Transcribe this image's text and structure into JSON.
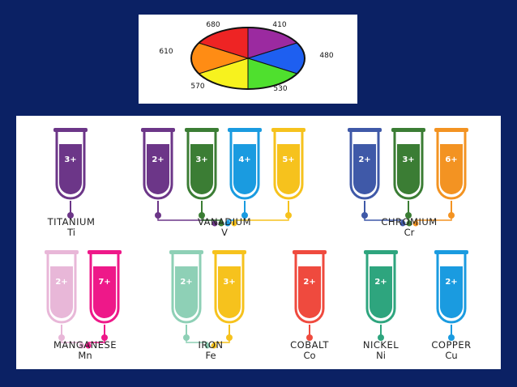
{
  "wheel": {
    "segments": [
      {
        "label": "410",
        "color": "#9b2aa0"
      },
      {
        "label": "480",
        "color": "#1e5ff0"
      },
      {
        "label": "530",
        "color": "#4fe02e"
      },
      {
        "label": "570",
        "color": "#f7f21e"
      },
      {
        "label": "610",
        "color": "#ff8c14"
      },
      {
        "label": "680",
        "color": "#ee2424"
      }
    ]
  },
  "elements": [
    {
      "name": "TITANIUM",
      "symbol": "Ti",
      "tubes": [
        {
          "charge": "3+",
          "color": "#6c3688"
        }
      ]
    },
    {
      "name": "VANADIUM",
      "symbol": "V",
      "tubes": [
        {
          "charge": "2+",
          "color": "#6c3688"
        },
        {
          "charge": "3+",
          "color": "#3b7d34"
        },
        {
          "charge": "4+",
          "color": "#1a9be0"
        },
        {
          "charge": "5+",
          "color": "#f6c21d"
        }
      ]
    },
    {
      "name": "CHROMIUM",
      "symbol": "Cr",
      "tubes": [
        {
          "charge": "2+",
          "color": "#3f59a8"
        },
        {
          "charge": "3+",
          "color": "#3b7d34"
        },
        {
          "charge": "6+",
          "color": "#f39322"
        }
      ]
    },
    {
      "name": "MANGANESE",
      "symbol": "Mn",
      "tubes": [
        {
          "charge": "2+",
          "color": "#e8b7d8"
        },
        {
          "charge": "7+",
          "color": "#ee1889"
        }
      ]
    },
    {
      "name": "IRON",
      "symbol": "Fe",
      "tubes": [
        {
          "charge": "2+",
          "color": "#8ed0b6"
        },
        {
          "charge": "3+",
          "color": "#f6c21d"
        }
      ]
    },
    {
      "name": "COBALT",
      "symbol": "Co",
      "tubes": [
        {
          "charge": "2+",
          "color": "#ef4a3e"
        }
      ]
    },
    {
      "name": "NICKEL",
      "symbol": "Ni",
      "tubes": [
        {
          "charge": "2+",
          "color": "#2ea57e"
        }
      ]
    },
    {
      "name": "COPPER",
      "symbol": "Cu",
      "tubes": [
        {
          "charge": "2+",
          "color": "#1a9be0"
        }
      ]
    }
  ]
}
